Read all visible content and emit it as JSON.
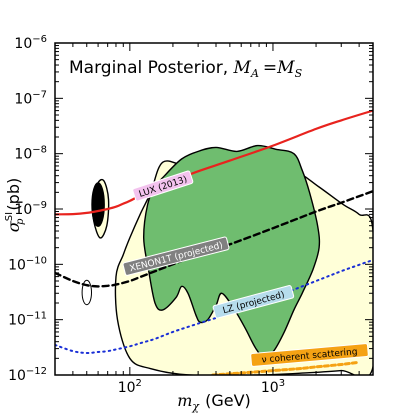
{
  "chart_data": {
    "type": "area",
    "title": "Marginal Posterior, M_A = M_S",
    "title_parts": {
      "prefix": "Marginal Posterior,",
      "lhs_main": "M",
      "lhs_sub": "A",
      "eq": "=",
      "rhs_main": "M",
      "rhs_sub": "S"
    },
    "xlabel": {
      "main": "m",
      "sub": "χ",
      "unit": "(GeV)"
    },
    "ylabel": {
      "main": "σ",
      "sub": "p",
      "sup": "SI",
      "unit": "(pb)"
    },
    "x_scale": "log",
    "y_scale": "log",
    "xlim": [
      30,
      5000
    ],
    "ylim": [
      1e-12,
      1e-06
    ],
    "x_ticks": [
      {
        "value": 100,
        "label": "10",
        "exp": "2"
      },
      {
        "value": 1000,
        "label": "10",
        "exp": "3"
      }
    ],
    "y_ticks": [
      {
        "value": 1e-12,
        "label": "10",
        "exp": "−12"
      },
      {
        "value": 1e-11,
        "label": "10",
        "exp": "−11"
      },
      {
        "value": 1e-10,
        "label": "10",
        "exp": "−10"
      },
      {
        "value": 1e-09,
        "label": "10",
        "exp": "−9"
      },
      {
        "value": 1e-08,
        "label": "10",
        "exp": "−8"
      },
      {
        "value": 1e-07,
        "label": "10",
        "exp": "−7"
      },
      {
        "value": 1e-06,
        "label": "10",
        "exp": "−6"
      }
    ],
    "grid": false,
    "regions": [
      {
        "level": "95%",
        "fill": "#ffffd8",
        "points": [
          [
            170,
            7e-09
          ],
          [
            250,
            6e-09
          ],
          [
            400,
            7e-09
          ],
          [
            800,
            7e-09
          ],
          [
            1400,
            5e-09
          ],
          [
            2100,
            2.5e-09
          ],
          [
            3100,
            1.2e-09
          ],
          [
            4000,
            8e-10
          ],
          [
            5000,
            4e-10
          ],
          [
            5000,
            1.4e-12
          ],
          [
            3000,
            1.2e-12
          ],
          [
            1800,
            1.1e-12
          ],
          [
            800,
            1e-12
          ],
          [
            260,
            1e-12
          ],
          [
            140,
            1.3e-12
          ],
          [
            100,
            2e-12
          ],
          [
            82,
            1e-11
          ],
          [
            80,
            6e-11
          ],
          [
            90,
            1.5e-10
          ],
          [
            100,
            3e-10
          ],
          [
            118,
            8e-10
          ],
          [
            140,
            2e-09
          ]
        ]
      },
      {
        "level": "68%",
        "fill": "#6fbd6f",
        "points": [
          [
            175,
            4e-09
          ],
          [
            230,
            8e-09
          ],
          [
            300,
            1.1e-08
          ],
          [
            400,
            1.3e-08
          ],
          [
            560,
            1.1e-08
          ],
          [
            780,
            1.4e-08
          ],
          [
            1050,
            1.2e-08
          ],
          [
            1400,
            1e-08
          ],
          [
            1600,
            5e-09
          ],
          [
            1800,
            2e-09
          ],
          [
            2050,
            5e-10
          ],
          [
            2100,
            2e-10
          ],
          [
            1900,
            8e-11
          ],
          [
            1600,
            3e-11
          ],
          [
            1400,
            1.5e-11
          ],
          [
            1200,
            6e-12
          ],
          [
            1020,
            2.8e-12
          ],
          [
            880,
            2e-12
          ],
          [
            760,
            3e-12
          ],
          [
            640,
            7e-12
          ],
          [
            540,
            1.5e-11
          ],
          [
            440,
            3e-11
          ],
          [
            400,
            1.8e-11
          ],
          [
            350,
            1e-11
          ],
          [
            310,
            9e-12
          ],
          [
            290,
            1.2e-11
          ],
          [
            255,
            3e-11
          ],
          [
            230,
            4e-11
          ],
          [
            210,
            2.5e-11
          ],
          [
            170,
            1.5e-11
          ],
          [
            150,
            2e-11
          ],
          [
            135,
            8e-11
          ],
          [
            125,
            3e-10
          ],
          [
            133,
            1.2e-09
          ],
          [
            150,
            2.5e-09
          ]
        ]
      },
      {
        "level": "95%-island",
        "fill": "#ffffd8",
        "points": [
          [
            62,
            3e-10
          ],
          [
            56,
            6e-10
          ],
          [
            55,
            1.5e-09
          ],
          [
            60,
            3e-09
          ],
          [
            66,
            3.2e-09
          ],
          [
            71,
            1.5e-09
          ],
          [
            69,
            5e-10
          ]
        ]
      }
    ],
    "series": [
      {
        "name": "LUX (2013)",
        "color": "#e8231e",
        "dash": "solid",
        "width": 2.2,
        "label_at": [
          170,
          2.6e-09
        ],
        "label_bg": "#f3c2ee",
        "x": [
          30,
          40,
          50,
          60,
          70,
          80,
          90,
          100,
          120,
          150,
          200,
          300,
          500,
          1000,
          2000,
          3000,
          5000
        ],
        "y": [
          8e-10,
          8.1e-10,
          8.5e-10,
          9.2e-10,
          1e-09,
          1.1e-09,
          1.25e-09,
          1.4e-09,
          1.8e-09,
          2.4e-09,
          3.2e-09,
          4.8e-09,
          7.5e-09,
          1.4e-08,
          2.8e-08,
          4e-08,
          6e-08
        ]
      },
      {
        "name": "XENON1T (projected)",
        "color": "#000000",
        "dash": "6,4",
        "width": 2.4,
        "label_at": [
          210,
          1.4e-10
        ],
        "label_bg": "#808080",
        "x": [
          30,
          40,
          50,
          60,
          70,
          80,
          100,
          120,
          150,
          200,
          300,
          500,
          1000,
          2000,
          3000,
          5000
        ],
        "y": [
          7e-11,
          5e-11,
          4.2e-11,
          4e-11,
          4.1e-11,
          4.3e-11,
          5e-11,
          6e-11,
          7.5e-11,
          1e-10,
          1.5e-10,
          2.3e-10,
          4.5e-10,
          9e-10,
          1.3e-09,
          2.1e-09
        ]
      },
      {
        "name": "LZ (projected)",
        "color": "#1a2fd6",
        "dash": "1.5,4",
        "width": 2,
        "label_at": [
          730,
          2.1e-11
        ],
        "label_bg": "#b6dcec",
        "x": [
          30,
          40,
          50,
          60,
          70,
          80,
          100,
          120,
          150,
          200,
          300,
          500,
          1000,
          2000,
          3000,
          5000
        ],
        "y": [
          3.5e-12,
          2.7e-12,
          2.5e-12,
          2.6e-12,
          2.7e-12,
          2.9e-12,
          3.3e-12,
          3.8e-12,
          4.5e-12,
          6e-12,
          8.5e-12,
          1.3e-11,
          2.5e-11,
          5e-11,
          7.5e-11,
          1.2e-10
        ]
      },
      {
        "name": "ν coherent scattering",
        "color": "#f5a214",
        "dash": "4,3",
        "width": 3,
        "label_at": [
          1800,
          2.3e-12
        ],
        "label_bg": "#f5a214",
        "x": [
          380,
          500,
          700,
          1000,
          1500,
          2000,
          3000,
          4000
        ],
        "y": [
          1e-12,
          1.05e-12,
          1.12e-12,
          1.2e-12,
          1.3e-12,
          1.4e-12,
          1.55e-12,
          1.7e-12
        ]
      }
    ],
    "small_contours": [
      {
        "type": "ellipse",
        "fill": "#000000",
        "center": [
          60,
          1.2e-09
        ],
        "size_data": [
          0.02,
          0.18
        ]
      },
      {
        "type": "ellipse",
        "fill": "none",
        "center": [
          50,
          3.1e-11
        ],
        "size_data": [
          0.015,
          0.1
        ]
      }
    ]
  }
}
